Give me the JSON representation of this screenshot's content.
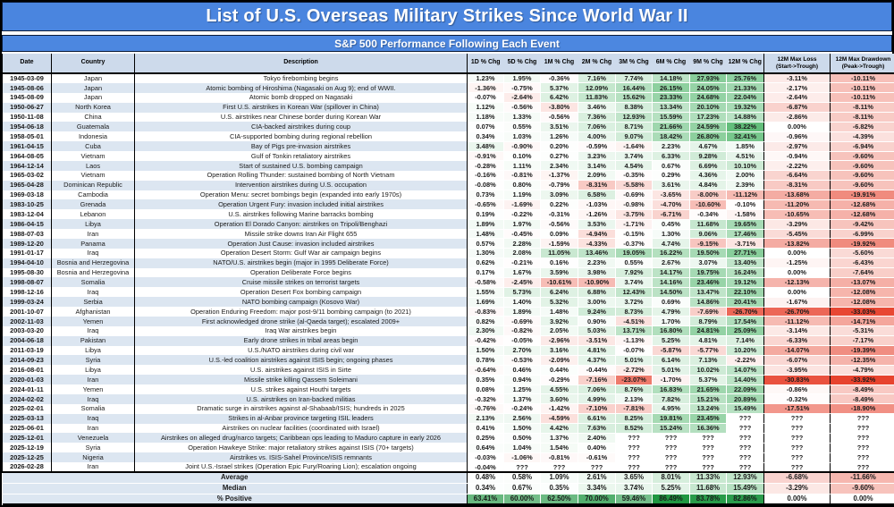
{
  "title": "List of U.S. Overseas Military Strikes Since World War II",
  "subtitle": "S&P 500 Performance Following Each Event",
  "colors": {
    "title_bar": "#4A85DF",
    "subtitle_bar": "#4C87E0",
    "header_bg": "#CDDAEB",
    "band_bg": "#DCE6F1",
    "positive_scale_max": "#63BE7B",
    "negative_scale_max": "#E7432E",
    "percent_positive_green": "#1E9641"
  },
  "chart_data": {
    "type": "table",
    "title": "List of U.S. Overseas Military Strikes Since World War II",
    "subtitle": "S&P 500 Performance Following Each Event",
    "columns": [
      "Date",
      "Country",
      "Description",
      "1D % Chg",
      "5D % Chg",
      "1M % Chg",
      "2M % Chg",
      "3M % Chg",
      "6M % Chg",
      "9M % Chg",
      "12M % Chg",
      "12M Max Loss\n(Start->Trough)",
      "12M Max Drawdown\n(Peak->Trough)"
    ],
    "rows": [
      [
        "1945-03-09",
        "Japan",
        "Tokyo firebombing begins",
        "1.23%",
        "1.95%",
        "-0.36%",
        "7.16%",
        "7.74%",
        "14.18%",
        "27.93%",
        "25.76%",
        "-3.11%",
        "-10.11%"
      ],
      [
        "1945-08-06",
        "Japan",
        "Atomic bombing of Hiroshima (Nagasaki on Aug 9); end of WWII.",
        "-1.36%",
        "-0.75%",
        "5.37%",
        "12.09%",
        "16.44%",
        "26.15%",
        "24.05%",
        "21.33%",
        "-2.17%",
        "-10.11%"
      ],
      [
        "1945-08-09",
        "Japan",
        "Atomic bomb dropped on Nagasaki",
        "-0.07%",
        "-2.64%",
        "6.42%",
        "11.83%",
        "15.62%",
        "23.33%",
        "24.68%",
        "22.04%",
        "-2.64%",
        "-10.11%"
      ],
      [
        "1950-06-27",
        "North Korea",
        "First U.S. airstrikes in Korean War (spillover in China)",
        "1.12%",
        "-0.56%",
        "-3.80%",
        "3.46%",
        "8.38%",
        "13.34%",
        "20.10%",
        "19.32%",
        "-6.87%",
        "-8.11%"
      ],
      [
        "1950-11-08",
        "China",
        "U.S. airstrikes near Chinese border during Korean War",
        "1.18%",
        "1.33%",
        "-0.56%",
        "7.36%",
        "12.93%",
        "15.59%",
        "17.23%",
        "14.88%",
        "-2.86%",
        "-8.11%"
      ],
      [
        "1954-06-18",
        "Guatemala",
        "CIA-backed airstrikes during coup",
        "0.07%",
        "0.55%",
        "3.51%",
        "7.06%",
        "8.71%",
        "21.66%",
        "24.59%",
        "38.22%",
        "0.00%",
        "-6.82%"
      ],
      [
        "1958-05-01",
        "Indonesia",
        "CIA-supported bombing during regional rebellion",
        "0.34%",
        "1.03%",
        "1.26%",
        "4.00%",
        "9.07%",
        "18.42%",
        "26.80%",
        "32.41%",
        "-0.96%",
        "-4.39%"
      ],
      [
        "1961-04-15",
        "Cuba",
        "Bay of Pigs pre-invasion airstrikes",
        "3.48%",
        "-0.90%",
        "0.20%",
        "-0.59%",
        "-1.64%",
        "2.23%",
        "4.67%",
        "1.85%",
        "-2.97%",
        "-6.94%"
      ],
      [
        "1964-08-05",
        "Vietnam",
        "Gulf of Tonkin retaliatory airstrikes",
        "-0.91%",
        "0.10%",
        "0.27%",
        "3.23%",
        "3.74%",
        "6.33%",
        "9.28%",
        "4.51%",
        "-0.94%",
        "-9.60%"
      ],
      [
        "1964-12-14",
        "Laos",
        "Start of sustained U.S. bombing campaign",
        "-0.28%",
        "1.11%",
        "2.34%",
        "3.14%",
        "4.54%",
        "0.67%",
        "6.69%",
        "10.10%",
        "-2.22%",
        "-9.60%"
      ],
      [
        "1965-03-02",
        "Vietnam",
        "Operation Rolling Thunder: sustained bombing of North Vietnam",
        "-0.16%",
        "-0.81%",
        "-1.37%",
        "2.09%",
        "-0.35%",
        "0.29%",
        "4.36%",
        "2.00%",
        "-6.64%",
        "-9.60%"
      ],
      [
        "1965-04-28",
        "Dominican Republic",
        "Intervention airstrikes during U.S. occupation",
        "-0.08%",
        "0.80%",
        "-0.79%",
        "-8.31%",
        "-5.58%",
        "3.61%",
        "4.84%",
        "2.39%",
        "-8.31%",
        "-9.60%"
      ],
      [
        "1969-03-18",
        "Cambodia",
        "Operation Menu: secret bombings begin (expanded into early 1970s)",
        "0.73%",
        "1.19%",
        "3.09%",
        "6.58%",
        "-0.69%",
        "-3.65%",
        "-8.00%",
        "-11.12%",
        "-13.68%",
        "-19.91%"
      ],
      [
        "1983-10-25",
        "Grenada",
        "Operation Urgent Fury: invasion included initial airstrikes",
        "-0.65%",
        "-1.69%",
        "0.22%",
        "-1.03%",
        "-0.98%",
        "-4.70%",
        "-10.60%",
        "-0.10%",
        "-11.20%",
        "-12.68%"
      ],
      [
        "1983-12-04",
        "Lebanon",
        "U.S. airstrikes following Marine barracks bombing",
        "0.19%",
        "-0.22%",
        "-0.31%",
        "-1.26%",
        "-3.75%",
        "-6.71%",
        "-0.34%",
        "-1.58%",
        "-10.65%",
        "-12.68%"
      ],
      [
        "1986-04-15",
        "Libya",
        "Operation El Dorado Canyon: airstrikes on Tripoli/Benghazi",
        "1.89%",
        "1.97%",
        "-0.56%",
        "3.53%",
        "-1.71%",
        "0.45%",
        "11.68%",
        "19.65%",
        "-3.29%",
        "-9.42%"
      ],
      [
        "1988-07-03",
        "Iran",
        "Missile strike downs Iran Air Flight 655",
        "1.48%",
        "-0.45%",
        "0.09%",
        "-4.94%",
        "-0.15%",
        "1.30%",
        "9.06%",
        "17.46%",
        "-5.45%",
        "-6.99%"
      ],
      [
        "1989-12-20",
        "Panama",
        "Operation Just Cause: invasion included airstrikes",
        "0.57%",
        "2.28%",
        "-1.59%",
        "-4.33%",
        "-0.37%",
        "4.74%",
        "-9.15%",
        "-3.71%",
        "-13.82%",
        "-19.92%"
      ],
      [
        "1991-01-17",
        "Iraq",
        "Operation Desert Storm: Gulf War air campaign begins",
        "1.30%",
        "2.08%",
        "11.05%",
        "13.46%",
        "19.05%",
        "16.22%",
        "19.50%",
        "27.71%",
        "0.00%",
        "-5.60%"
      ],
      [
        "1994-04-10",
        "Bosnia and Herzegovina",
        "NATO/U.S. airstrikes begin (major in 1995 Deliberate Force)",
        "0.62%",
        "-0.21%",
        "0.16%",
        "2.23%",
        "0.55%",
        "2.67%",
        "3.07%",
        "13.40%",
        "-1.25%",
        "-6.43%"
      ],
      [
        "1995-08-30",
        "Bosnia and Herzegovina",
        "Operation Deliberate Force begins",
        "0.17%",
        "1.67%",
        "3.59%",
        "3.98%",
        "7.92%",
        "14.17%",
        "19.75%",
        "16.24%",
        "0.00%",
        "-7.64%"
      ],
      [
        "1998-08-07",
        "Somalia",
        "Cruise missile strikes on terrorist targets",
        "-0.58%",
        "-2.45%",
        "-10.61%",
        "-10.90%",
        "3.74%",
        "14.16%",
        "23.46%",
        "19.12%",
        "-12.13%",
        "-13.07%"
      ],
      [
        "1998-12-16",
        "Iraq",
        "Operation Desert Fox bombing campaign",
        "1.55%",
        "5.73%",
        "6.24%",
        "6.88%",
        "12.43%",
        "14.50%",
        "13.47%",
        "22.10%",
        "0.00%",
        "-12.08%"
      ],
      [
        "1999-03-24",
        "Serbia",
        "NATO bombing campaign (Kosovo War)",
        "1.69%",
        "1.40%",
        "5.32%",
        "3.00%",
        "3.72%",
        "0.69%",
        "14.86%",
        "20.41%",
        "-1.67%",
        "-12.08%"
      ],
      [
        "2001-10-07",
        "Afghanistan",
        "Operation Enduring Freedom: major post-9/11 bombing campaign (to 2021)",
        "-0.83%",
        "1.89%",
        "1.48%",
        "9.24%",
        "8.73%",
        "4.79%",
        "-7.69%",
        "-26.70%",
        "-26.70%",
        "-33.03%"
      ],
      [
        "2002-11-03",
        "Yemen",
        "First acknowledged drone strike (al-Qaeda target); escalated 2009+",
        "0.82%",
        "-0.69%",
        "3.92%",
        "0.90%",
        "-4.51%",
        "1.70%",
        "8.79%",
        "17.54%",
        "-11.12%",
        "-14.71%"
      ],
      [
        "2003-03-20",
        "Iraq",
        "Iraq War airstrikes begin",
        "2.30%",
        "-0.82%",
        "2.05%",
        "5.03%",
        "13.71%",
        "16.80%",
        "24.81%",
        "25.09%",
        "-3.14%",
        "-5.31%"
      ],
      [
        "2004-06-18",
        "Pakistan",
        "Early drone strikes in tribal areas begin",
        "-0.42%",
        "-0.05%",
        "-2.96%",
        "-3.51%",
        "-1.13%",
        "5.25%",
        "4.81%",
        "7.14%",
        "-6.33%",
        "-7.17%"
      ],
      [
        "2011-03-19",
        "Libya",
        "U.S./NATO airstrikes during civil war",
        "1.50%",
        "2.70%",
        "3.16%",
        "4.81%",
        "-0.07%",
        "-5.87%",
        "-5.77%",
        "10.20%",
        "-14.07%",
        "-19.39%"
      ],
      [
        "2014-09-23",
        "Syria",
        "U.S.-led coalition airstrikes against ISIS begin; ongoing phases",
        "0.78%",
        "-0.53%",
        "-2.09%",
        "4.37%",
        "5.01%",
        "6.14%",
        "7.13%",
        "-2.22%",
        "-6.07%",
        "-12.35%"
      ],
      [
        "2016-08-01",
        "Libya",
        "U.S. airstrikes against ISIS in Sirte",
        "-0.64%",
        "0.46%",
        "0.44%",
        "-0.44%",
        "-2.72%",
        "5.01%",
        "10.02%",
        "14.07%",
        "-3.95%",
        "-4.79%"
      ],
      [
        "2020-01-03",
        "Iran",
        "Missile strike killing Qassem Soleimani",
        "0.35%",
        "0.94%",
        "-0.29%",
        "-7.16%",
        "-23.07%",
        "-1.70%",
        "5.37%",
        "14.40%",
        "-30.83%",
        "-33.92%"
      ],
      [
        "2024-01-11",
        "Yemen",
        "U.S. strikes against Houthi targets",
        "0.08%",
        "1.25%",
        "4.55%",
        "7.06%",
        "8.76%",
        "16.83%",
        "21.65%",
        "22.09%",
        "-0.86%",
        "-8.49%"
      ],
      [
        "2024-02-02",
        "Iraq",
        "U.S. airstrikes on Iran-backed militias",
        "-0.32%",
        "1.37%",
        "3.60%",
        "4.99%",
        "2.13%",
        "7.82%",
        "15.21%",
        "20.89%",
        "-0.32%",
        "-8.49%"
      ],
      [
        "2025-02-01",
        "Somalia",
        "Dramatic surge in airstrikes against al-Shabaab/ISIS; hundreds in 2025",
        "-0.76%",
        "-0.24%",
        "-1.42%",
        "-7.10%",
        "-7.81%",
        "4.95%",
        "13.24%",
        "15.49%",
        "-17.51%",
        "-18.90%"
      ],
      [
        "2025-03-13",
        "Iraq",
        "Strikes in al-Anbar province targeting ISIL leaders",
        "2.13%",
        "2.56%",
        "-4.59%",
        "6.61%",
        "8.25%",
        "19.81%",
        "23.45%",
        "???",
        "???",
        "???"
      ],
      [
        "2025-06-01",
        "Iran",
        "Airstrikes on nuclear facilities (coordinated with Israel)",
        "0.41%",
        "1.50%",
        "4.42%",
        "7.63%",
        "8.52%",
        "15.24%",
        "16.36%",
        "???",
        "???",
        "???"
      ],
      [
        "2025-12-01",
        "Venezuela",
        "Airstrikes on alleged drug/narco targets; Caribbean ops leading to Maduro capture in early 2026",
        "0.25%",
        "0.50%",
        "1.37%",
        "2.40%",
        "???",
        "???",
        "???",
        "???",
        "???",
        "???"
      ],
      [
        "2025-12-19",
        "Syria",
        "Operation Hawkeye Strike: major retaliatory strikes against ISIS (70+ targets)",
        "0.64%",
        "1.04%",
        "1.54%",
        "0.40%",
        "???",
        "???",
        "???",
        "???",
        "???",
        "???"
      ],
      [
        "2025-12-25",
        "Nigeria",
        "Airstrikes vs. ISIS-Sahel Province/ISIS remnants",
        "-0.03%",
        "-1.06%",
        "-0.81%",
        "-0.61%",
        "???",
        "???",
        "???",
        "???",
        "???",
        "???"
      ],
      [
        "2026-02-28",
        "Iran",
        "Joint U.S.-Israel strikes (Operation Epic Fury/Roaring Lion); escalation ongoing",
        "-0.04%",
        "???",
        "???",
        "???",
        "???",
        "???",
        "???",
        "???",
        "???",
        "???"
      ]
    ],
    "summary_rows": [
      [
        "Average",
        "0.48%",
        "0.58%",
        "1.09%",
        "2.61%",
        "3.65%",
        "8.01%",
        "11.33%",
        "12.93%",
        "-6.68%",
        "-11.66%"
      ],
      [
        "Median",
        "0.34%",
        "0.67%",
        "0.35%",
        "3.34%",
        "3.74%",
        "5.25%",
        "11.68%",
        "15.49%",
        "-3.29%",
        "-9.60%"
      ],
      [
        "% Positive",
        "63.41%",
        "60.00%",
        "62.50%",
        "70.00%",
        "59.46%",
        "86.49%",
        "83.78%",
        "82.86%",
        "0.00%",
        "0.00%"
      ]
    ]
  }
}
